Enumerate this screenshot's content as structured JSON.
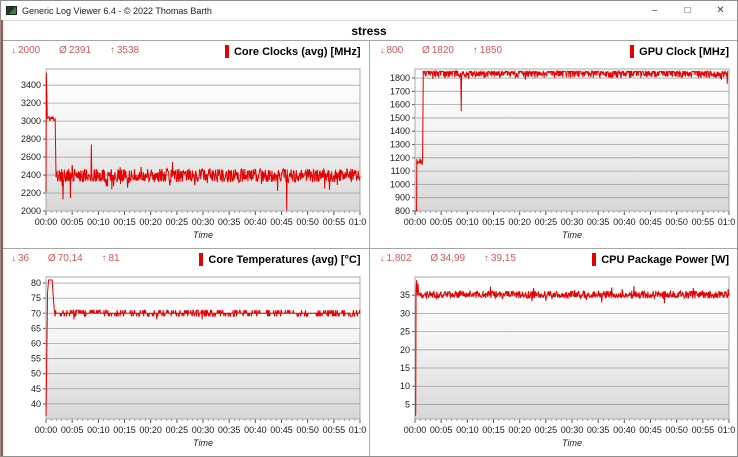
{
  "window": {
    "title": "Generic Log Viewer 6.4 - © 2022 Thomas Barth",
    "controls": {
      "minimize": "–",
      "maximize": "□",
      "close": "✕"
    }
  },
  "header": {
    "title": "stress"
  },
  "symbols": {
    "min": "↓",
    "avg": "Ø",
    "max": "↑"
  },
  "colors": {
    "series": "#e60000",
    "stats_text": "#d95757",
    "grid_line": "#8d8d8d",
    "plot_border": "#a8a8a8"
  },
  "panels": [
    {
      "id": "core-clocks",
      "legend": "Core Clocks (avg) [MHz]",
      "stats": {
        "min": "2000",
        "avg": "2391",
        "max": "3538"
      },
      "chart_data": {
        "type": "line",
        "title": "Core Clocks (avg) [MHz]",
        "xlabel": "Time",
        "x_range": [
          0,
          3600
        ],
        "x_major_sec": 300,
        "x_minor_sec": 60,
        "x_tick_labels": [
          "00:00",
          "00:05",
          "00:10",
          "00:15",
          "00:20",
          "00:25",
          "00:30",
          "00:35",
          "00:40",
          "00:45",
          "00:50",
          "00:55",
          "01:00"
        ],
        "ylim": [
          2000,
          3580
        ],
        "ytick_vals": [
          2000,
          2200,
          2400,
          2600,
          2800,
          3000,
          3200,
          3400
        ],
        "ytick_labels": [
          "2000",
          "2200",
          "2400",
          "2600",
          "2800",
          "3000",
          "3200",
          "3400"
        ],
        "series_color": "#e60000",
        "step_sec": 5,
        "seed": 11,
        "quantize": 0,
        "lead_points": [
          [
            0,
            2210
          ],
          [
            4,
            3538
          ],
          [
            10,
            3280
          ],
          [
            14,
            3080
          ]
        ],
        "segments": [
          {
            "t0": 15,
            "t1": 105,
            "base": 3030,
            "amp": 35
          },
          {
            "t0": 115,
            "t1": 3600,
            "base": 2395,
            "amp": 75,
            "dip_chance": 0.05,
            "dip_depth": 120,
            "up_chance": 0.012,
            "up_amp": 90
          }
        ],
        "spikes": [
          [
            195,
            2130
          ],
          [
            280,
            2145
          ],
          [
            520,
            2740
          ],
          [
            2760,
            2005
          ]
        ]
      }
    },
    {
      "id": "gpu-clock",
      "legend": "GPU Clock [MHz]",
      "stats": {
        "min": "800",
        "avg": "1820",
        "max": "1850"
      },
      "chart_data": {
        "type": "line",
        "title": "GPU Clock [MHz]",
        "xlabel": "Time",
        "x_range": [
          0,
          3600
        ],
        "x_major_sec": 300,
        "x_minor_sec": 60,
        "x_tick_labels": [
          "00:00",
          "00:05",
          "00:10",
          "00:15",
          "00:20",
          "00:25",
          "00:30",
          "00:35",
          "00:40",
          "00:45",
          "00:50",
          "00:55",
          "01:00"
        ],
        "ylim": [
          800,
          1868
        ],
        "ytick_vals": [
          800,
          900,
          1000,
          1100,
          1200,
          1300,
          1400,
          1500,
          1600,
          1700,
          1800
        ],
        "ytick_labels": [
          "800",
          "900",
          "1000",
          "1100",
          "1200",
          "1300",
          "1400",
          "1500",
          "1600",
          "1700",
          "1800"
        ],
        "series_color": "#e60000",
        "step_sec": 5,
        "seed": 23,
        "quantize": 0,
        "lead_points": [
          [
            0,
            800
          ],
          [
            18,
            800
          ],
          [
            21,
            1190
          ]
        ],
        "segments": [
          {
            "t0": 22,
            "t1": 88,
            "base": 1172,
            "amp": 20
          },
          {
            "t0": 95,
            "t1": 3590,
            "base": 1841,
            "amp": 38,
            "clamp_max": 1850,
            "dip_chance": 0.03,
            "dip_depth": 30
          }
        ],
        "spikes": [
          [
            530,
            1552
          ],
          [
            3580,
            1757
          ]
        ]
      }
    },
    {
      "id": "core-temps",
      "legend": "Core Temperatures (avg) [°C]",
      "stats": {
        "min": "36",
        "avg": "70,14",
        "max": "81"
      },
      "chart_data": {
        "type": "line",
        "title": "Core Temperatures (avg) [°C]",
        "xlabel": "Time",
        "x_range": [
          0,
          3600
        ],
        "x_major_sec": 300,
        "x_minor_sec": 60,
        "x_tick_labels": [
          "00:00",
          "00:05",
          "00:10",
          "00:15",
          "00:20",
          "00:25",
          "00:30",
          "00:35",
          "00:40",
          "00:45",
          "00:50",
          "00:55",
          "01:00"
        ],
        "ylim": [
          35,
          82
        ],
        "ytick_vals": [
          40,
          45,
          50,
          55,
          60,
          65,
          70,
          75,
          80
        ],
        "ytick_labels": [
          "40",
          "45",
          "50",
          "55",
          "60",
          "65",
          "70",
          "75",
          "80"
        ],
        "series_color": "#e60000",
        "step_sec": 5,
        "seed": 7,
        "quantize": 1,
        "lead_points": [
          [
            0,
            36
          ],
          [
            18,
            77
          ],
          [
            30,
            81
          ],
          [
            70,
            81
          ],
          [
            85,
            75
          ],
          [
            95,
            71
          ],
          [
            100,
            70
          ]
        ],
        "segments": [
          {
            "t0": 105,
            "t1": 3600,
            "base": 70.05,
            "amp": 0.8,
            "dip_chance": 0.02,
            "dip_depth": 1.5
          }
        ],
        "spikes": [
          [
            320,
            68
          ],
          [
            430,
            71
          ],
          [
            1790,
            68
          ]
        ]
      }
    },
    {
      "id": "cpu-power",
      "legend": "CPU Package Power [W]",
      "stats": {
        "min": "1,802",
        "avg": "34,99",
        "max": "39,15"
      },
      "chart_data": {
        "type": "line",
        "title": "CPU Package Power [W]",
        "xlabel": "Time",
        "x_range": [
          0,
          3600
        ],
        "x_major_sec": 300,
        "x_minor_sec": 60,
        "x_tick_labels": [
          "00:00",
          "00:05",
          "00:10",
          "00:15",
          "00:20",
          "00:25",
          "00:30",
          "00:35",
          "00:40",
          "00:45",
          "00:50",
          "00:55",
          "01:00"
        ],
        "ylim": [
          1,
          40
        ],
        "ytick_vals": [
          5,
          10,
          15,
          20,
          25,
          30,
          35
        ],
        "ytick_labels": [
          "5",
          "10",
          "15",
          "20",
          "25",
          "30",
          "35"
        ],
        "series_color": "#e60000",
        "step_sec": 5,
        "seed": 42,
        "quantize": 0,
        "lead_points": [
          [
            0,
            1.8
          ],
          [
            8,
            2.2
          ],
          [
            12,
            36.5
          ],
          [
            18,
            39.15
          ],
          [
            26,
            35
          ],
          [
            34,
            38.2
          ],
          [
            42,
            35.2
          ]
        ],
        "segments": [
          {
            "t0": 50,
            "t1": 3600,
            "base": 35.15,
            "amp": 1.05,
            "up_chance": 0.04,
            "up_amp": 1.6,
            "dip_chance": 0.03,
            "dip_depth": 1.4
          }
        ],
        "spikes": []
      }
    }
  ]
}
